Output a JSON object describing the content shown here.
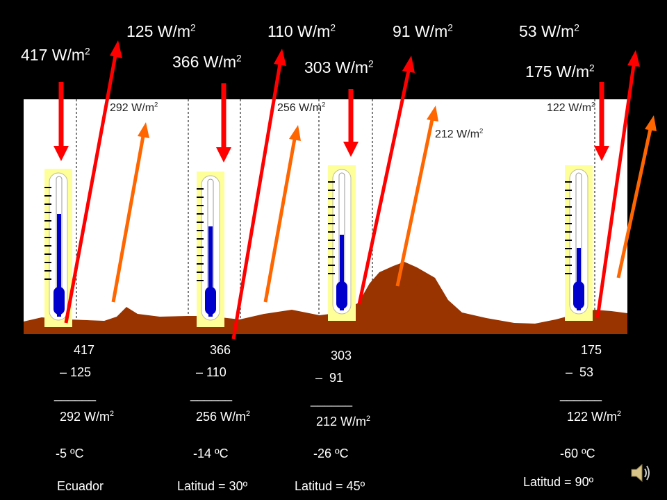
{
  "colors": {
    "background": "#000000",
    "panel": "#ffffff",
    "ground": "#993300",
    "incoming_arrow": "#ff0000",
    "outgoing_arrow": "#ff0000",
    "surface_arrow": "#ff6600",
    "thermometer_body": "#ffff99",
    "thermometer_liquid": "#0000cc"
  },
  "top_labels": {
    "out_equator": "125 W/m",
    "out_30": "110 W/m",
    "out_45": "91 W/m",
    "out_90": "53 W/m",
    "in_equator": "417 W/m",
    "in_30": "366 W/m",
    "in_45": "303 W/m",
    "in_90": "175 W/m",
    "exp": "2"
  },
  "panel_labels": {
    "net_equator": "292 W/m",
    "net_30": "256 W/m",
    "net_45": "212 W/m",
    "net_90": "122 W/m",
    "exp": "2"
  },
  "columns": [
    {
      "in": "417",
      "out": "125",
      "rule": "______",
      "result": "292 W/m",
      "temp": "-5 ºC",
      "place": "Ecuador"
    },
    {
      "in": "366",
      "out": "110",
      "rule": "______",
      "result": "256 W/m",
      "temp": "-14 ºC",
      "place": "Latitud = 30º"
    },
    {
      "in": "303",
      "out": " 91",
      "rule": "______",
      "result": "212 W/m",
      "temp": "-26 ºC",
      "place": "Latitud = 45º"
    },
    {
      "in": "175",
      "out": " 53",
      "rule": "______",
      "result": "122 W/m",
      "temp": "-60 ºC",
      "place": "Latitud = 90º"
    }
  ],
  "minus_sign": "–",
  "exp": "2",
  "icons": {
    "speaker": "speaker-icon"
  }
}
